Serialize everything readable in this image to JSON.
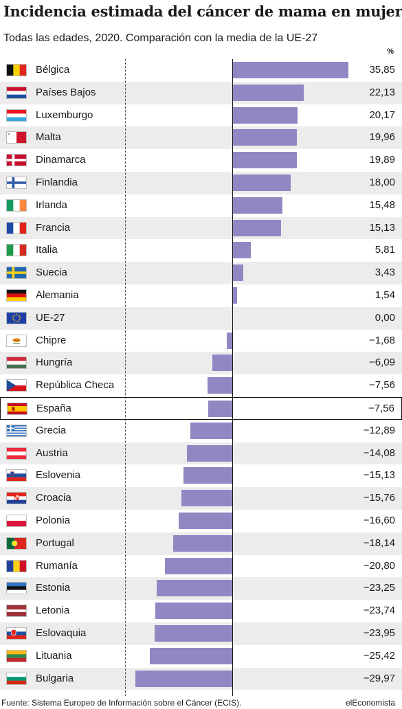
{
  "chart_data": {
    "type": "bar",
    "orientation": "horizontal",
    "title": "Incidencia estimada del cáncer de mama en mujeres",
    "subtitle": "Todas las edades, 2020. Comparación con la media de la UE-27",
    "unit": "%",
    "xlim": [
      -30,
      36
    ],
    "highlight": "España",
    "bar_color": "#9387c3",
    "categories": [
      "Bélgica",
      "Países Bajos",
      "Luxemburgo",
      "Malta",
      "Dinamarca",
      "Finlandia",
      "Irlanda",
      "Francia",
      "Italia",
      "Suecia",
      "Alemania",
      "UE-27",
      "Chipre",
      "Hungría",
      "República Checa",
      "España",
      "Grecia",
      "Austria",
      "Eslovenia",
      "Croacia",
      "Polonia",
      "Portugal",
      "Rumanía",
      "Estonia",
      "Letonia",
      "Eslovaquia",
      "Lituania",
      "Bulgaria"
    ],
    "values": [
      35.85,
      22.13,
      20.17,
      19.96,
      19.89,
      18.0,
      15.48,
      15.13,
      5.81,
      3.43,
      1.54,
      0.0,
      -1.68,
      -6.09,
      -7.56,
      -7.56,
      -12.89,
      -14.08,
      -15.13,
      -15.76,
      -16.6,
      -18.14,
      -20.8,
      -23.25,
      -23.74,
      -23.95,
      -25.42,
      -29.97
    ],
    "labels": [
      "35,85",
      "22,13",
      "20,17",
      "19,96",
      "19,89",
      "18,00",
      "15,48",
      "15,13",
      "5,81",
      "3,43",
      "1,54",
      "0,00",
      "−1,68",
      "−6,09",
      "−7,56",
      "−7,56",
      "−12,89",
      "−14,08",
      "−15,13",
      "−15,76",
      "−16,60",
      "−18,14",
      "−20,80",
      "−23,25",
      "−23,74",
      "−23,95",
      "−25,42",
      "−29,97"
    ],
    "flag_icons": [
      "belgium-flag",
      "netherlands-flag",
      "luxembourg-flag",
      "malta-flag",
      "denmark-flag",
      "finland-flag",
      "ireland-flag",
      "france-flag",
      "italy-flag",
      "sweden-flag",
      "germany-flag",
      "eu-flag",
      "cyprus-flag",
      "hungary-flag",
      "czech-republic-flag",
      "spain-flag",
      "greece-flag",
      "austria-flag",
      "slovenia-flag",
      "croatia-flag",
      "poland-flag",
      "portugal-flag",
      "romania-flag",
      "estonia-flag",
      "latvia-flag",
      "slovakia-flag",
      "lithuania-flag",
      "bulgaria-flag"
    ],
    "grid": false
  },
  "footer": {
    "source": "Fuente: Sistema Europeo de Información sobre el Cáncer (ECIS).",
    "brand": "elEconomista"
  }
}
